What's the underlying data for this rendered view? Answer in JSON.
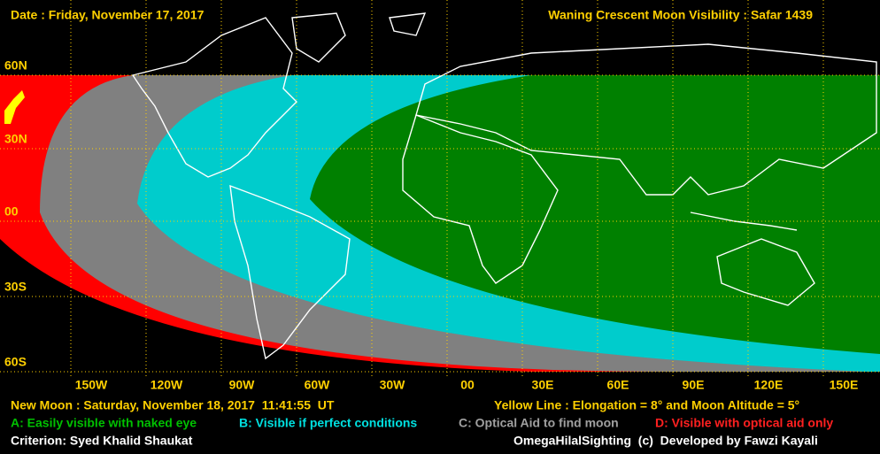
{
  "header": {
    "date": "Date : Friday, November 17, 2017",
    "title": "Waning Crescent Moon Visibility : Safar 1439"
  },
  "latitudes": [
    "60N",
    "30N",
    "00",
    "30S",
    "60S"
  ],
  "longitudes": [
    "150W",
    "120W",
    "90W",
    "60W",
    "30W",
    "00",
    "30E",
    "60E",
    "90E",
    "120E",
    "150E"
  ],
  "footer": {
    "new_moon": "New Moon : Saturday, November 18, 2017  11:41:55  UT",
    "yellow_line": "Yellow Line : Elongation = 8° and Moon Altitude = 5°",
    "criterion": "Criterion: Syed Khalid Shaukat",
    "credit": "OmegaHilalSighting  (c)  Developed by Fawzi Kayali"
  },
  "legend": [
    {
      "label": "A: Easily visible with naked eye",
      "color": "#00c000"
    },
    {
      "label": "B: Visible if perfect conditions",
      "color": "#00e0e0"
    },
    {
      "label": "C: Optical Aid to find moon",
      "color": "#a0a0a0"
    },
    {
      "label": "D: Visible with optical aid only",
      "color": "#ff2020"
    }
  ]
}
